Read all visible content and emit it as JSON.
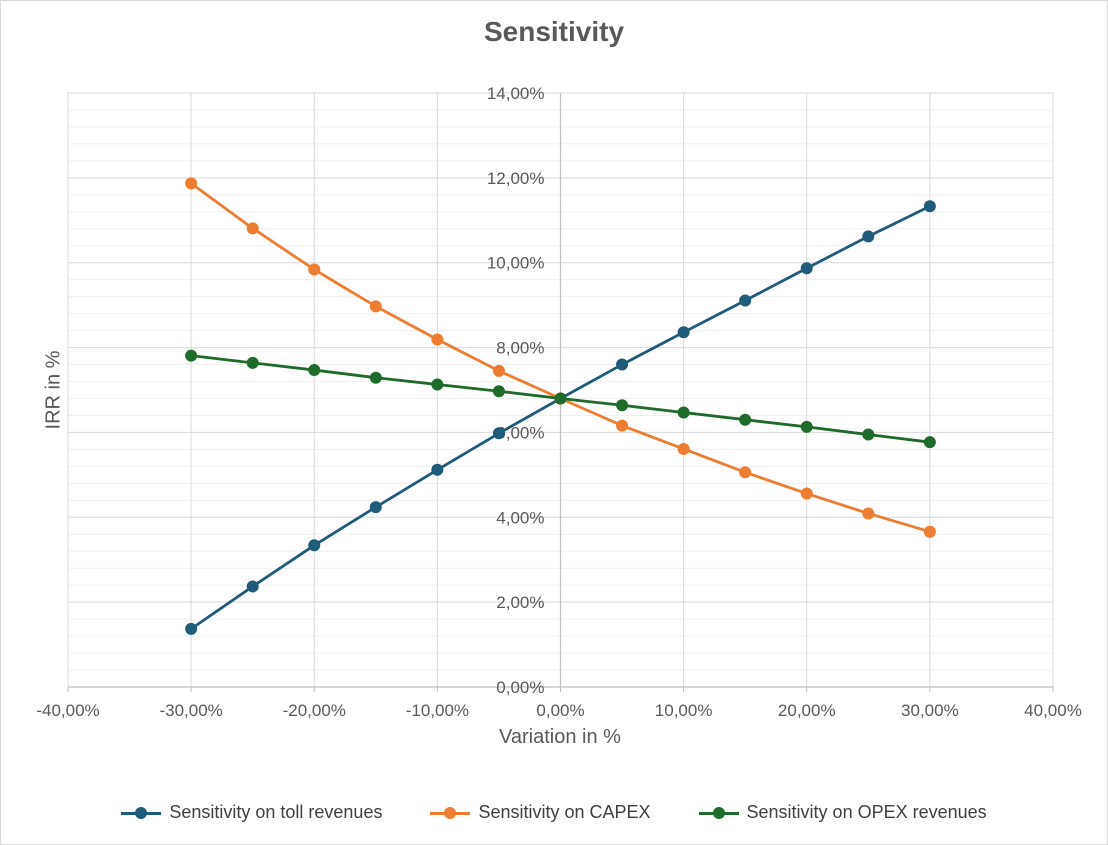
{
  "chart_data": {
    "type": "line",
    "title": "Sensitivity",
    "xlabel": "Variation in %",
    "ylabel": "IRR in %",
    "xlim": [
      -0.4,
      0.4
    ],
    "ylim": [
      0,
      0.14
    ],
    "x_ticks": [
      -0.4,
      -0.3,
      -0.2,
      -0.1,
      0,
      0.1,
      0.2,
      0.3,
      0.4
    ],
    "x_tick_labels": [
      "-40,00%",
      "-30,00%",
      "-20,00%",
      "-10,00%",
      "0,00%",
      "10,00%",
      "20,00%",
      "30,00%",
      "40,00%"
    ],
    "y_ticks": [
      0,
      0.02,
      0.04,
      0.06,
      0.08,
      0.1,
      0.12,
      0.14
    ],
    "y_tick_labels": [
      "0,00%",
      "2,00%",
      "4,00%",
      "6,00%",
      "8,00%",
      "10,00%",
      "12,00%",
      "14,00%"
    ],
    "y_minor_step": 0.004,
    "grid": true,
    "legend_position": "bottom",
    "x": [
      -0.3,
      -0.25,
      -0.2,
      -0.15,
      -0.1,
      -0.05,
      0,
      0.05,
      0.1,
      0.15,
      0.2,
      0.25,
      0.3
    ],
    "series": [
      {
        "name": "Sensitivity on toll revenues",
        "color": "#1f5b7a",
        "values": [
          0.0137,
          0.0237,
          0.0334,
          0.0424,
          0.0512,
          0.0598,
          0.068,
          0.076,
          0.0836,
          0.0911,
          0.0987,
          0.1062,
          0.1133
        ]
      },
      {
        "name": "Sensitivity on CAPEX",
        "color": "#ed7d31",
        "values": [
          0.1187,
          0.1081,
          0.0984,
          0.0897,
          0.0819,
          0.0745,
          0.068,
          0.0616,
          0.0561,
          0.0506,
          0.0456,
          0.0409,
          0.0366
        ]
      },
      {
        "name": "Sensitivity on OPEX revenues",
        "color": "#1e6b2a",
        "values": [
          0.0781,
          0.0764,
          0.0747,
          0.0729,
          0.0713,
          0.0697,
          0.068,
          0.0664,
          0.0647,
          0.063,
          0.0613,
          0.0595,
          0.0577
        ]
      }
    ]
  }
}
